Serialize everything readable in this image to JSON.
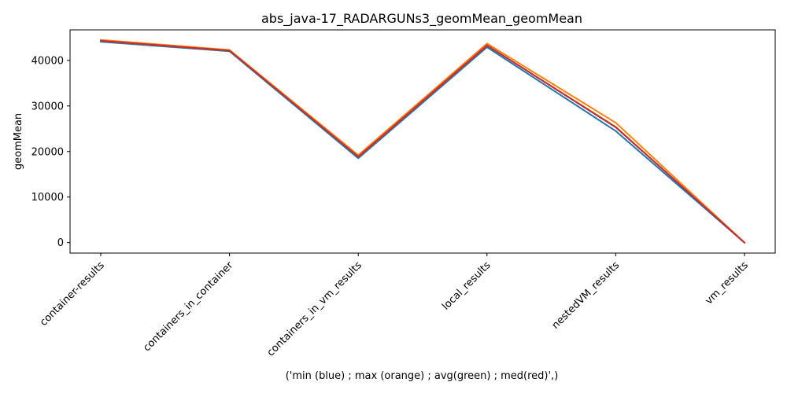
{
  "chart_data": {
    "type": "line",
    "title": "abs_java-17_RADARGUNs3_geomMean_geomMean",
    "xlabel": "('min (blue) ; max (orange) ; avg(green) ; med(red)',)",
    "ylabel": "geomMean",
    "categories": [
      "container-results",
      "containers_in_container",
      "containers_in_vm_results",
      "local_results",
      "nestedVM_results",
      "vm_results"
    ],
    "y_ticks": [
      0,
      10000,
      20000,
      30000,
      40000
    ],
    "ylim": [
      -2300,
      46700
    ],
    "grid": false,
    "legend": "none",
    "series": [
      {
        "values": [
          44100,
          42000,
          18500,
          42900,
          24500,
          0
        ],
        "color": "#1f77b4"
      },
      {
        "values": [
          44500,
          42300,
          19200,
          43700,
          26300,
          0
        ],
        "color": "#ff7f0e"
      },
      {
        "values": [
          44300,
          42150,
          18850,
          43300,
          25400,
          0
        ],
        "color": "#2ca02c"
      },
      {
        "values": [
          44300,
          42150,
          18850,
          43300,
          25300,
          0
        ],
        "color": "#d62728"
      }
    ]
  }
}
